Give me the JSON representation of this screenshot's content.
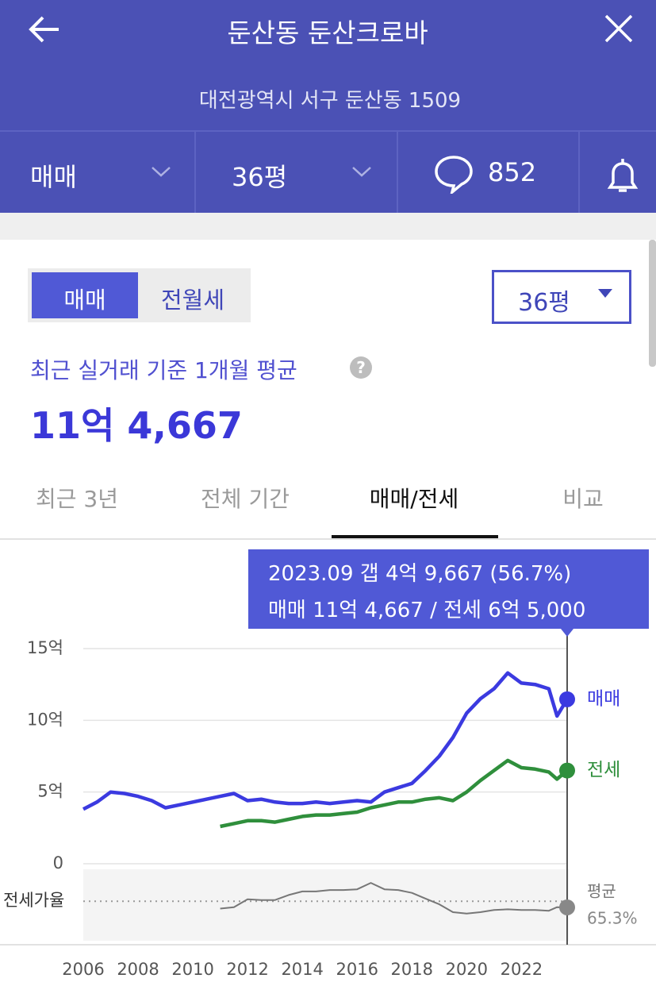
{
  "header": {
    "title": "둔산동 둔산크로바",
    "address": "대전광역시 서구 둔산동 1509"
  },
  "filter_bar": {
    "trade_type": "매매",
    "size": "36평",
    "comments": 852
  },
  "card": {
    "toggle": [
      "매매",
      "전월세"
    ],
    "size_select": "36평",
    "average_caption": "최근 실거래 기준 1개월 평균",
    "help": "?",
    "average_price": "11억 4,667",
    "tabs": [
      "최근 3년",
      "전체 기간",
      "매매/전세",
      "비교"
    ]
  },
  "tooltip": {
    "line1": "2023.09  갭 4억 9,667 (56.7%)",
    "line2": "매매 11억 4,667 / 전세 6억 5,000"
  },
  "chart_data": [
    {
      "type": "line",
      "x": [
        2006,
        2006.5,
        2007,
        2007.5,
        2008,
        2008.5,
        2009,
        2009.5,
        2010,
        2010.5,
        2011,
        2011.5,
        2012,
        2012.5,
        2013,
        2013.5,
        2014,
        2014.5,
        2015,
        2015.5,
        2016,
        2016.5,
        2017,
        2017.5,
        2018,
        2018.5,
        2019,
        2019.5,
        2020,
        2020.5,
        2021,
        2021.5,
        2022,
        2022.5,
        2023,
        2023.3,
        2023.67
      ],
      "series": [
        {
          "name": "매매",
          "color": "#3b3ae0",
          "values": [
            3.8,
            4.3,
            5.0,
            4.9,
            4.7,
            4.4,
            3.9,
            4.1,
            4.3,
            4.5,
            4.7,
            4.9,
            4.4,
            4.5,
            4.3,
            4.2,
            4.2,
            4.3,
            4.2,
            4.3,
            4.4,
            4.3,
            5.0,
            5.3,
            5.6,
            6.5,
            7.5,
            8.8,
            10.5,
            11.5,
            12.2,
            13.3,
            12.6,
            12.5,
            12.2,
            10.3,
            11.4667
          ]
        },
        {
          "name": "전세",
          "color": "#2f8f3c",
          "values": [
            null,
            null,
            null,
            null,
            null,
            null,
            null,
            null,
            null,
            null,
            2.6,
            2.8,
            3.0,
            3.0,
            2.9,
            3.1,
            3.3,
            3.4,
            3.4,
            3.5,
            3.6,
            3.9,
            4.1,
            4.3,
            4.3,
            4.5,
            4.6,
            4.4,
            5.0,
            5.8,
            6.5,
            7.2,
            6.7,
            6.6,
            6.4,
            5.9,
            6.5
          ]
        }
      ],
      "xlim": [
        2006,
        2023.67
      ],
      "xticks": [
        2006,
        2008,
        2010,
        2012,
        2014,
        2016,
        2018,
        2020,
        2022
      ],
      "ylim": [
        0,
        15
      ],
      "yticks": [
        0,
        {
          "value": 5,
          "label": "5억"
        },
        {
          "value": 10,
          "label": "10억"
        },
        {
          "value": 15,
          "label": "15억"
        }
      ],
      "grid": true
    },
    {
      "type": "line",
      "x": [
        2011,
        2011.5,
        2012,
        2012.5,
        2013,
        2013.5,
        2014,
        2014.5,
        2015,
        2015.5,
        2016,
        2016.5,
        2017,
        2017.5,
        2018,
        2018.5,
        2019,
        2019.5,
        2020,
        2020.5,
        2021,
        2021.5,
        2022,
        2022.5,
        2023,
        2023.3,
        2023.67
      ],
      "series": [
        {
          "name": "전세가율",
          "color": "#777777",
          "values": [
            55,
            57,
            68,
            67,
            67,
            74,
            79,
            79,
            81,
            81,
            82,
            91,
            82,
            81,
            77,
            69,
            61,
            50,
            48,
            50,
            53,
            54,
            53,
            53,
            52,
            57,
            56.7
          ]
        }
      ],
      "xlim": [
        2006,
        2023.67
      ],
      "ylim": [
        10,
        110
      ],
      "average": 65.3,
      "average_label": "65.3%",
      "average_title": "평균"
    }
  ]
}
